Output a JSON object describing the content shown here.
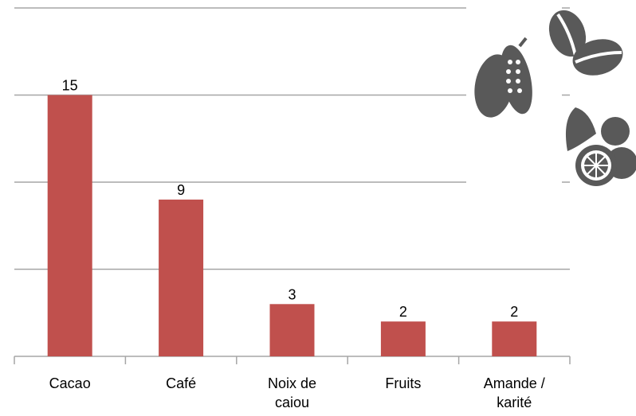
{
  "chart_data": {
    "type": "bar",
    "categories": [
      "Cacao",
      "Café",
      "Noix de caiou",
      "Fruits",
      "Amande / karité"
    ],
    "values": [
      15,
      9,
      3,
      2,
      2
    ],
    "color": "#c0504d",
    "ylim": [
      0,
      20
    ],
    "yticks": [
      0,
      5,
      10,
      15,
      20
    ],
    "grid": true
  }
}
